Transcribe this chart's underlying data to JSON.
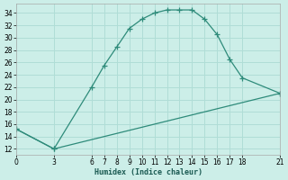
{
  "title": "",
  "xlabel": "Humidex (Indice chaleur)",
  "bg_color": "#cceee8",
  "grid_color": "#b0ddd6",
  "line_color": "#2e8b7a",
  "xlim": [
    0,
    21
  ],
  "ylim": [
    11,
    35.5
  ],
  "xticks": [
    0,
    3,
    6,
    7,
    8,
    9,
    10,
    11,
    12,
    13,
    14,
    15,
    16,
    17,
    18,
    21
  ],
  "yticks": [
    12,
    14,
    16,
    18,
    20,
    22,
    24,
    26,
    28,
    30,
    32,
    34
  ],
  "curve1_x": [
    0,
    3,
    6,
    7,
    8,
    9,
    10,
    11,
    12,
    13,
    14,
    15,
    16,
    17,
    18,
    21
  ],
  "curve1_y": [
    15.2,
    12,
    22,
    25.5,
    28.5,
    31.5,
    33,
    34,
    34.5,
    34.5,
    34.5,
    33,
    30.5,
    26.5,
    23.5,
    21
  ],
  "curve2_x": [
    0,
    3,
    21
  ],
  "curve2_y": [
    15.2,
    12,
    21
  ]
}
